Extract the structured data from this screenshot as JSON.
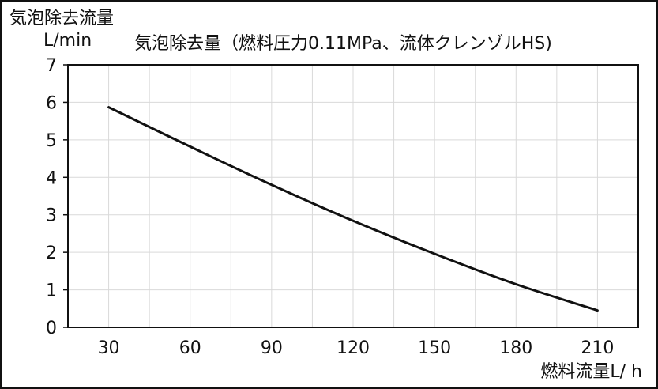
{
  "chart_data": {
    "type": "line",
    "title": "気泡除去量（燃料圧力0.11MPa、流体クレンゾルHS)",
    "ylabel_line1": "気泡除去流量",
    "ylabel_line2": "L/min",
    "xlabel": "燃料流量L/ h",
    "xlim": [
      15,
      225
    ],
    "ylim": [
      0,
      7
    ],
    "x_ticks": [
      30,
      60,
      90,
      120,
      150,
      180,
      210
    ],
    "y_ticks": [
      0,
      1,
      2,
      3,
      4,
      5,
      6,
      7
    ],
    "grid": true,
    "series": [
      {
        "color": "#111111",
        "points": [
          {
            "x": 30,
            "y": 5.87
          },
          {
            "x": 60,
            "y": 4.82
          },
          {
            "x": 90,
            "y": 3.8
          },
          {
            "x": 120,
            "y": 2.84
          },
          {
            "x": 150,
            "y": 1.96
          },
          {
            "x": 180,
            "y": 1.15
          },
          {
            "x": 210,
            "y": 0.45
          }
        ]
      }
    ]
  },
  "colors": {
    "frame": "#111111",
    "grid": "#d9d9d9",
    "line": "#111111"
  }
}
